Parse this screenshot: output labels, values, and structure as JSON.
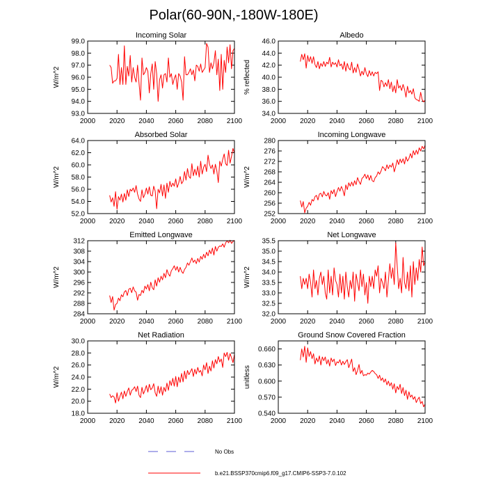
{
  "page_title": "Polar(60-90N,-180W-180E)",
  "legend": {
    "obs_label": "No Obs",
    "obs_color": "#5b5bd6",
    "model_label": "b.e21.BSSP370cmip6.f09_g17.CMIP6-SSP3-7.0.102",
    "model_color": "#ff0000"
  },
  "chart_data": [
    {
      "type": "line",
      "title": "Incoming Solar",
      "ylabel": "W/m^2",
      "xlim": [
        2000,
        2100
      ],
      "ylim": [
        93.0,
        99.0
      ],
      "xticks": [
        2000,
        2020,
        2040,
        2060,
        2080,
        2100
      ],
      "xtick_labels": [
        "2000",
        "2020",
        "2040",
        "2060",
        "2080",
        "2100"
      ],
      "yticks": [
        93.0,
        94.0,
        95.0,
        96.0,
        97.0,
        98.0,
        99.0
      ],
      "ytick_labels": [
        "93.0",
        "94.0",
        "95.0",
        "96.0",
        "97.0",
        "98.0",
        "99.0"
      ],
      "series": [
        {
          "name": "b.e21.BSSP370cmip6.f09_g17.CMIP6-SSP3-7.0.102",
          "x_start": 2015,
          "values": [
            97.0,
            96.8,
            95.5,
            95.7,
            95.7,
            95.9,
            97.9,
            95.4,
            96.8,
            95.4,
            98.6,
            95.4,
            96.9,
            96.1,
            97.8,
            95.6,
            96.8,
            96.0,
            95.6,
            97.0,
            95.5,
            94.1,
            97.6,
            96.2,
            96.4,
            96.8,
            96.5,
            94.7,
            96.3,
            97.1,
            95.0,
            97.3,
            96.3,
            94.0,
            95.8,
            96.2,
            95.1,
            96.2,
            96.3,
            95.6,
            97.6,
            96.0,
            96.3,
            95.4,
            95.9,
            96.2,
            95.0,
            96.3,
            96.1,
            95.6,
            94.1,
            97.7,
            96.2,
            96.2,
            96.4,
            96.7,
            96.2,
            96.6,
            95.7,
            97.0,
            96.9,
            96.5,
            97.1,
            96.4,
            96.6,
            96.8,
            98.8,
            98.5,
            96.4,
            97.2,
            96.7,
            97.2,
            98.2,
            96.2,
            97.5,
            94.9,
            97.9,
            95.0,
            97.4,
            96.4,
            98.5,
            97.2,
            98.7,
            96.7,
            98.2,
            98.4
          ]
        }
      ]
    },
    {
      "type": "line",
      "title": "Albedo",
      "ylabel": "% reflected",
      "xlim": [
        2000,
        2100
      ],
      "ylim": [
        34.0,
        46.0
      ],
      "xticks": [
        2000,
        2020,
        2040,
        2060,
        2080,
        2100
      ],
      "xtick_labels": [
        "2000",
        "2020",
        "2040",
        "2060",
        "2080",
        "2100"
      ],
      "yticks": [
        34.0,
        36.0,
        38.0,
        40.0,
        42.0,
        44.0,
        46.0
      ],
      "ytick_labels": [
        "34.0",
        "36.0",
        "38.0",
        "40.0",
        "42.0",
        "44.0",
        "46.0"
      ],
      "series": [
        {
          "name": "b.e21.BSSP370cmip6.f09_g17.CMIP6-SSP3-7.0.102",
          "x_start": 2015,
          "values": [
            42.6,
            43.8,
            42.9,
            43.9,
            41.5,
            43.6,
            42.6,
            43.4,
            42.3,
            43.4,
            42.1,
            41.6,
            42.6,
            41.4,
            42.3,
            41.8,
            42.6,
            41.8,
            42.5,
            42.2,
            43.3,
            41.7,
            42.5,
            42.1,
            42.4,
            41.7,
            42.9,
            41.9,
            42.2,
            41.3,
            42.6,
            41.0,
            42.3,
            41.5,
            41.2,
            42.5,
            40.7,
            41.6,
            40.8,
            42.2,
            41.3,
            40.2,
            41.0,
            40.4,
            41.6,
            40.6,
            40.1,
            41.1,
            40.3,
            40.9,
            40.2,
            40.8,
            40.6,
            40.9,
            37.8,
            39.5,
            39.3,
            38.4,
            39.1,
            38.5,
            39.6,
            38.1,
            39.2,
            37.6,
            38.6,
            37.4,
            39.6,
            38.2,
            38.6,
            37.8,
            38.8,
            38.0,
            36.7,
            38.5,
            37.4,
            37.8,
            37.2,
            38.1,
            36.6,
            36.3,
            36.2,
            36.0,
            37.5,
            36.3,
            35.9,
            36.2
          ]
        }
      ]
    },
    {
      "type": "line",
      "title": "Absorbed Solar",
      "ylabel": "W/m^2",
      "xlim": [
        2000,
        2100
      ],
      "ylim": [
        52.0,
        64.0
      ],
      "xticks": [
        2000,
        2020,
        2040,
        2060,
        2080,
        2100
      ],
      "xtick_labels": [
        "2000",
        "2020",
        "2040",
        "2060",
        "2080",
        "2100"
      ],
      "yticks": [
        52.0,
        54.0,
        56.0,
        58.0,
        60.0,
        62.0,
        64.0
      ],
      "ytick_labels": [
        "52.0",
        "54.0",
        "56.0",
        "58.0",
        "60.0",
        "62.0",
        "64.0"
      ],
      "series": [
        {
          "name": "b.e21.BSSP370cmip6.f09_g17.CMIP6-SSP3-7.0.102",
          "x_start": 2015,
          "values": [
            55.0,
            53.9,
            54.6,
            53.2,
            55.6,
            52.7,
            54.8,
            54.2,
            55.2,
            53.9,
            55.3,
            54.2,
            55.9,
            54.8,
            56.0,
            55.7,
            56.2,
            55.5,
            56.6,
            55.2,
            54.4,
            54.0,
            55.9,
            54.6,
            55.2,
            56.2,
            55.2,
            56.4,
            55.0,
            54.9,
            56.5,
            55.7,
            52.8,
            56.0,
            55.4,
            56.8,
            54.9,
            56.7,
            54.5,
            57.0,
            55.5,
            57.3,
            56.4,
            57.0,
            56.5,
            57.7,
            56.3,
            57.0,
            58.1,
            56.9,
            57.3,
            58.9,
            57.5,
            59.4,
            58.1,
            57.8,
            60.2,
            58.2,
            59.3,
            58.3,
            59.8,
            58.0,
            60.6,
            58.5,
            59.6,
            60.1,
            58.9,
            61.6,
            60.1,
            59.4,
            60.0,
            58.5,
            60.1,
            59.0,
            57.1,
            60.6,
            59.8,
            60.9,
            61.8,
            60.2,
            59.9,
            62.4,
            60.3,
            61.4,
            62.7,
            61.9
          ]
        }
      ]
    },
    {
      "type": "line",
      "title": "Incoming Longwave",
      "ylabel": "W/m^2",
      "xlim": [
        2000,
        2100
      ],
      "ylim": [
        252,
        280
      ],
      "xticks": [
        2000,
        2020,
        2040,
        2060,
        2080,
        2100
      ],
      "xtick_labels": [
        "2000",
        "2020",
        "2040",
        "2060",
        "2080",
        "2100"
      ],
      "yticks": [
        252,
        256,
        260,
        264,
        268,
        272,
        276,
        280
      ],
      "ytick_labels": [
        "252",
        "256",
        "260",
        "264",
        "268",
        "272",
        "276",
        "280"
      ],
      "series": [
        {
          "name": "b.e21.BSSP370cmip6.f09_g17.CMIP6-SSP3-7.0.102",
          "x_start": 2015,
          "values": [
            257.0,
            254.5,
            256.6,
            252.3,
            254.1,
            254.8,
            256.3,
            255.2,
            257.4,
            256.8,
            258.5,
            259.0,
            257.2,
            259.5,
            259.8,
            258.4,
            260.5,
            259.1,
            258.8,
            260.0,
            257.5,
            260.8,
            259.6,
            261.2,
            258.5,
            260.4,
            262.0,
            260.6,
            262.4,
            261.0,
            258.8,
            263.0,
            261.2,
            263.8,
            262.5,
            264.1,
            262.6,
            264.6,
            263.1,
            265.8,
            264.3,
            263.2,
            265.5,
            266.0,
            267.1,
            265.4,
            266.8,
            264.8,
            266.6,
            264.6,
            264.2,
            265.8,
            266.4,
            268.0,
            267.1,
            268.3,
            270.0,
            269.4,
            268.4,
            270.7,
            269.2,
            270.6,
            269.8,
            271.4,
            268.0,
            270.1,
            272.6,
            270.8,
            272.9,
            271.5,
            273.0,
            271.0,
            273.8,
            272.1,
            273.1,
            275.0,
            273.3,
            276.1,
            274.5,
            276.3,
            274.8,
            277.2,
            276.0,
            277.8,
            276.8,
            278.2
          ]
        }
      ]
    },
    {
      "type": "line",
      "title": "Emitted Longwave",
      "ylabel": "W/m^2",
      "xlim": [
        2000,
        2100
      ],
      "ylim": [
        284,
        312
      ],
      "xticks": [
        2000,
        2020,
        2040,
        2060,
        2080,
        2100
      ],
      "xtick_labels": [
        "2000",
        "2020",
        "2040",
        "2060",
        "2080",
        "2100"
      ],
      "yticks": [
        284,
        288,
        292,
        296,
        300,
        304,
        308,
        312
      ],
      "ytick_labels": [
        "284",
        "288",
        "292",
        "296",
        "300",
        "304",
        "308",
        "312"
      ],
      "series": [
        {
          "name": "b.e21.BSSP370cmip6.f09_g17.CMIP6-SSP3-7.0.102",
          "x_start": 2015,
          "values": [
            291.0,
            288.3,
            290.6,
            285.4,
            287.5,
            288.0,
            290.0,
            289.0,
            291.3,
            290.5,
            292.4,
            292.9,
            291.0,
            293.4,
            293.8,
            292.1,
            294.3,
            292.8,
            292.3,
            289.2,
            291.4,
            291.0,
            293.0,
            292.0,
            294.6,
            293.5,
            295.2,
            292.8,
            296.1,
            294.0,
            293.2,
            297.0,
            294.6,
            297.8,
            296.1,
            298.4,
            297.0,
            299.5,
            297.8,
            300.9,
            299.3,
            298.4,
            300.5,
            301.3,
            302.4,
            300.7,
            302.1,
            300.0,
            301.8,
            300.2,
            299.5,
            301.0,
            301.8,
            303.5,
            302.6,
            304.0,
            305.4,
            303.7,
            304.6,
            303.2,
            305.2,
            303.8,
            306.0,
            304.9,
            306.8,
            305.4,
            307.6,
            306.2,
            308.4,
            307.0,
            309.2,
            306.5,
            309.8,
            308.0,
            309.5,
            310.0,
            309.8,
            310.8,
            309.5,
            311.2,
            312.0,
            311.2,
            312.2,
            311.0,
            311.7,
            312.2
          ]
        }
      ]
    },
    {
      "type": "line",
      "title": "Net Longwave",
      "ylabel": "W/m^2",
      "xlim": [
        2000,
        2100
      ],
      "ylim": [
        32.0,
        35.5
      ],
      "xticks": [
        2000,
        2020,
        2040,
        2060,
        2080,
        2100
      ],
      "xtick_labels": [
        "2000",
        "2020",
        "2040",
        "2060",
        "2080",
        "2100"
      ],
      "yticks": [
        32.0,
        32.5,
        33.0,
        33.5,
        34.0,
        34.5,
        35.0,
        35.5
      ],
      "ytick_labels": [
        "32.0",
        "32.5",
        "33.0",
        "33.5",
        "34.0",
        "34.5",
        "35.0",
        "35.5"
      ],
      "series": [
        {
          "name": "b.e21.BSSP370cmip6.f09_g17.CMIP6-SSP3-7.0.102",
          "x_start": 2015,
          "values": [
            33.8,
            33.2,
            33.7,
            33.4,
            33.7,
            33.2,
            33.9,
            33.5,
            32.8,
            34.1,
            33.2,
            33.6,
            32.9,
            33.7,
            34.0,
            33.4,
            33.8,
            33.0,
            32.7,
            34.1,
            33.0,
            33.8,
            32.9,
            34.2,
            33.6,
            33.4,
            32.8,
            33.9,
            33.0,
            33.8,
            32.7,
            34.0,
            33.3,
            32.8,
            33.6,
            33.2,
            34.0,
            32.6,
            33.9,
            33.5,
            33.1,
            34.1,
            33.3,
            33.9,
            32.9,
            33.5,
            32.5,
            33.8,
            33.3,
            33.8,
            33.2,
            34.1,
            33.8,
            34.3,
            33.0,
            33.7,
            33.5,
            33.2,
            34.0,
            32.8,
            33.6,
            34.4,
            33.7,
            34.2,
            33.4,
            35.4,
            34.3,
            33.2,
            33.7,
            33.0,
            34.7,
            33.5,
            33.2,
            34.0,
            33.1,
            34.3,
            32.8,
            34.5,
            33.4,
            34.2,
            33.6,
            34.6,
            34.0,
            35.2,
            34.3,
            34.5
          ]
        }
      ]
    },
    {
      "type": "line",
      "title": "Net Radiation",
      "ylabel": "W/m^2",
      "xlim": [
        2000,
        2100
      ],
      "ylim": [
        18.0,
        30.0
      ],
      "xticks": [
        2000,
        2020,
        2040,
        2060,
        2080,
        2100
      ],
      "xtick_labels": [
        "2000",
        "2020",
        "2040",
        "2060",
        "2080",
        "2100"
      ],
      "yticks": [
        18.0,
        20.0,
        22.0,
        24.0,
        26.0,
        28.0,
        30.0
      ],
      "ytick_labels": [
        "18.0",
        "20.0",
        "22.0",
        "24.0",
        "26.0",
        "28.0",
        "30.0"
      ],
      "series": [
        {
          "name": "b.e21.BSSP370cmip6.f09_g17.CMIP6-SSP3-7.0.102",
          "x_start": 2015,
          "values": [
            21.2,
            20.6,
            20.9,
            20.7,
            19.7,
            21.4,
            20.0,
            20.8,
            21.5,
            20.4,
            21.7,
            20.8,
            21.6,
            22.2,
            21.0,
            21.8,
            22.0,
            22.4,
            21.6,
            22.5,
            21.0,
            20.6,
            22.3,
            21.2,
            21.8,
            22.6,
            21.5,
            22.8,
            21.9,
            22.2,
            22.9,
            21.4,
            20.8,
            22.5,
            21.3,
            22.4,
            21.0,
            22.3,
            21.6,
            23.0,
            21.8,
            23.4,
            22.6,
            23.8,
            22.5,
            24.1,
            22.4,
            24.0,
            23.1,
            24.6,
            23.2,
            25.0,
            23.7,
            25.1,
            24.4,
            24.9,
            25.4,
            24.1,
            25.3,
            24.5,
            25.6,
            24.8,
            25.1,
            24.2,
            26.0,
            25.2,
            26.4,
            24.6,
            25.8,
            25.0,
            26.7,
            25.5,
            26.9,
            26.2,
            27.4,
            26.5,
            27.0,
            25.6,
            28.0,
            27.4,
            28.1,
            26.8,
            27.9,
            27.2,
            26.4,
            27.8
          ]
        }
      ]
    },
    {
      "type": "line",
      "title": "Ground Snow Covered Fraction",
      "ylabel": "unitless",
      "xlim": [
        2000,
        2100
      ],
      "ylim": [
        0.54,
        0.675
      ],
      "xticks": [
        2000,
        2020,
        2040,
        2060,
        2080,
        2100
      ],
      "xtick_labels": [
        "2000",
        "2020",
        "2040",
        "2060",
        "2080",
        "2100"
      ],
      "yticks": [
        0.54,
        0.57,
        0.6,
        0.63,
        0.66
      ],
      "ytick_labels": [
        "0.540",
        "0.570",
        "0.600",
        "0.630",
        "0.660"
      ],
      "series": [
        {
          "name": "b.e21.BSSP370cmip6.f09_g17.CMIP6-SSP3-7.0.102",
          "x_start": 2015,
          "values": [
            0.639,
            0.66,
            0.645,
            0.665,
            0.635,
            0.662,
            0.646,
            0.655,
            0.642,
            0.651,
            0.632,
            0.643,
            0.636,
            0.647,
            0.63,
            0.645,
            0.638,
            0.645,
            0.632,
            0.64,
            0.628,
            0.643,
            0.636,
            0.641,
            0.629,
            0.636,
            0.634,
            0.64,
            0.63,
            0.637,
            0.631,
            0.636,
            0.64,
            0.625,
            0.633,
            0.641,
            0.618,
            0.625,
            0.612,
            0.62,
            0.631,
            0.614,
            0.62,
            0.61,
            0.612,
            0.611,
            0.615,
            0.613,
            0.617,
            0.62,
            0.618,
            0.614,
            0.612,
            0.605,
            0.611,
            0.601,
            0.606,
            0.598,
            0.604,
            0.593,
            0.6,
            0.591,
            0.597,
            0.585,
            0.595,
            0.578,
            0.59,
            0.584,
            0.594,
            0.577,
            0.588,
            0.573,
            0.583,
            0.566,
            0.58,
            0.57,
            0.574,
            0.566,
            0.571,
            0.56,
            0.566,
            0.57,
            0.558,
            0.562,
            0.552,
            0.557
          ]
        }
      ]
    }
  ]
}
